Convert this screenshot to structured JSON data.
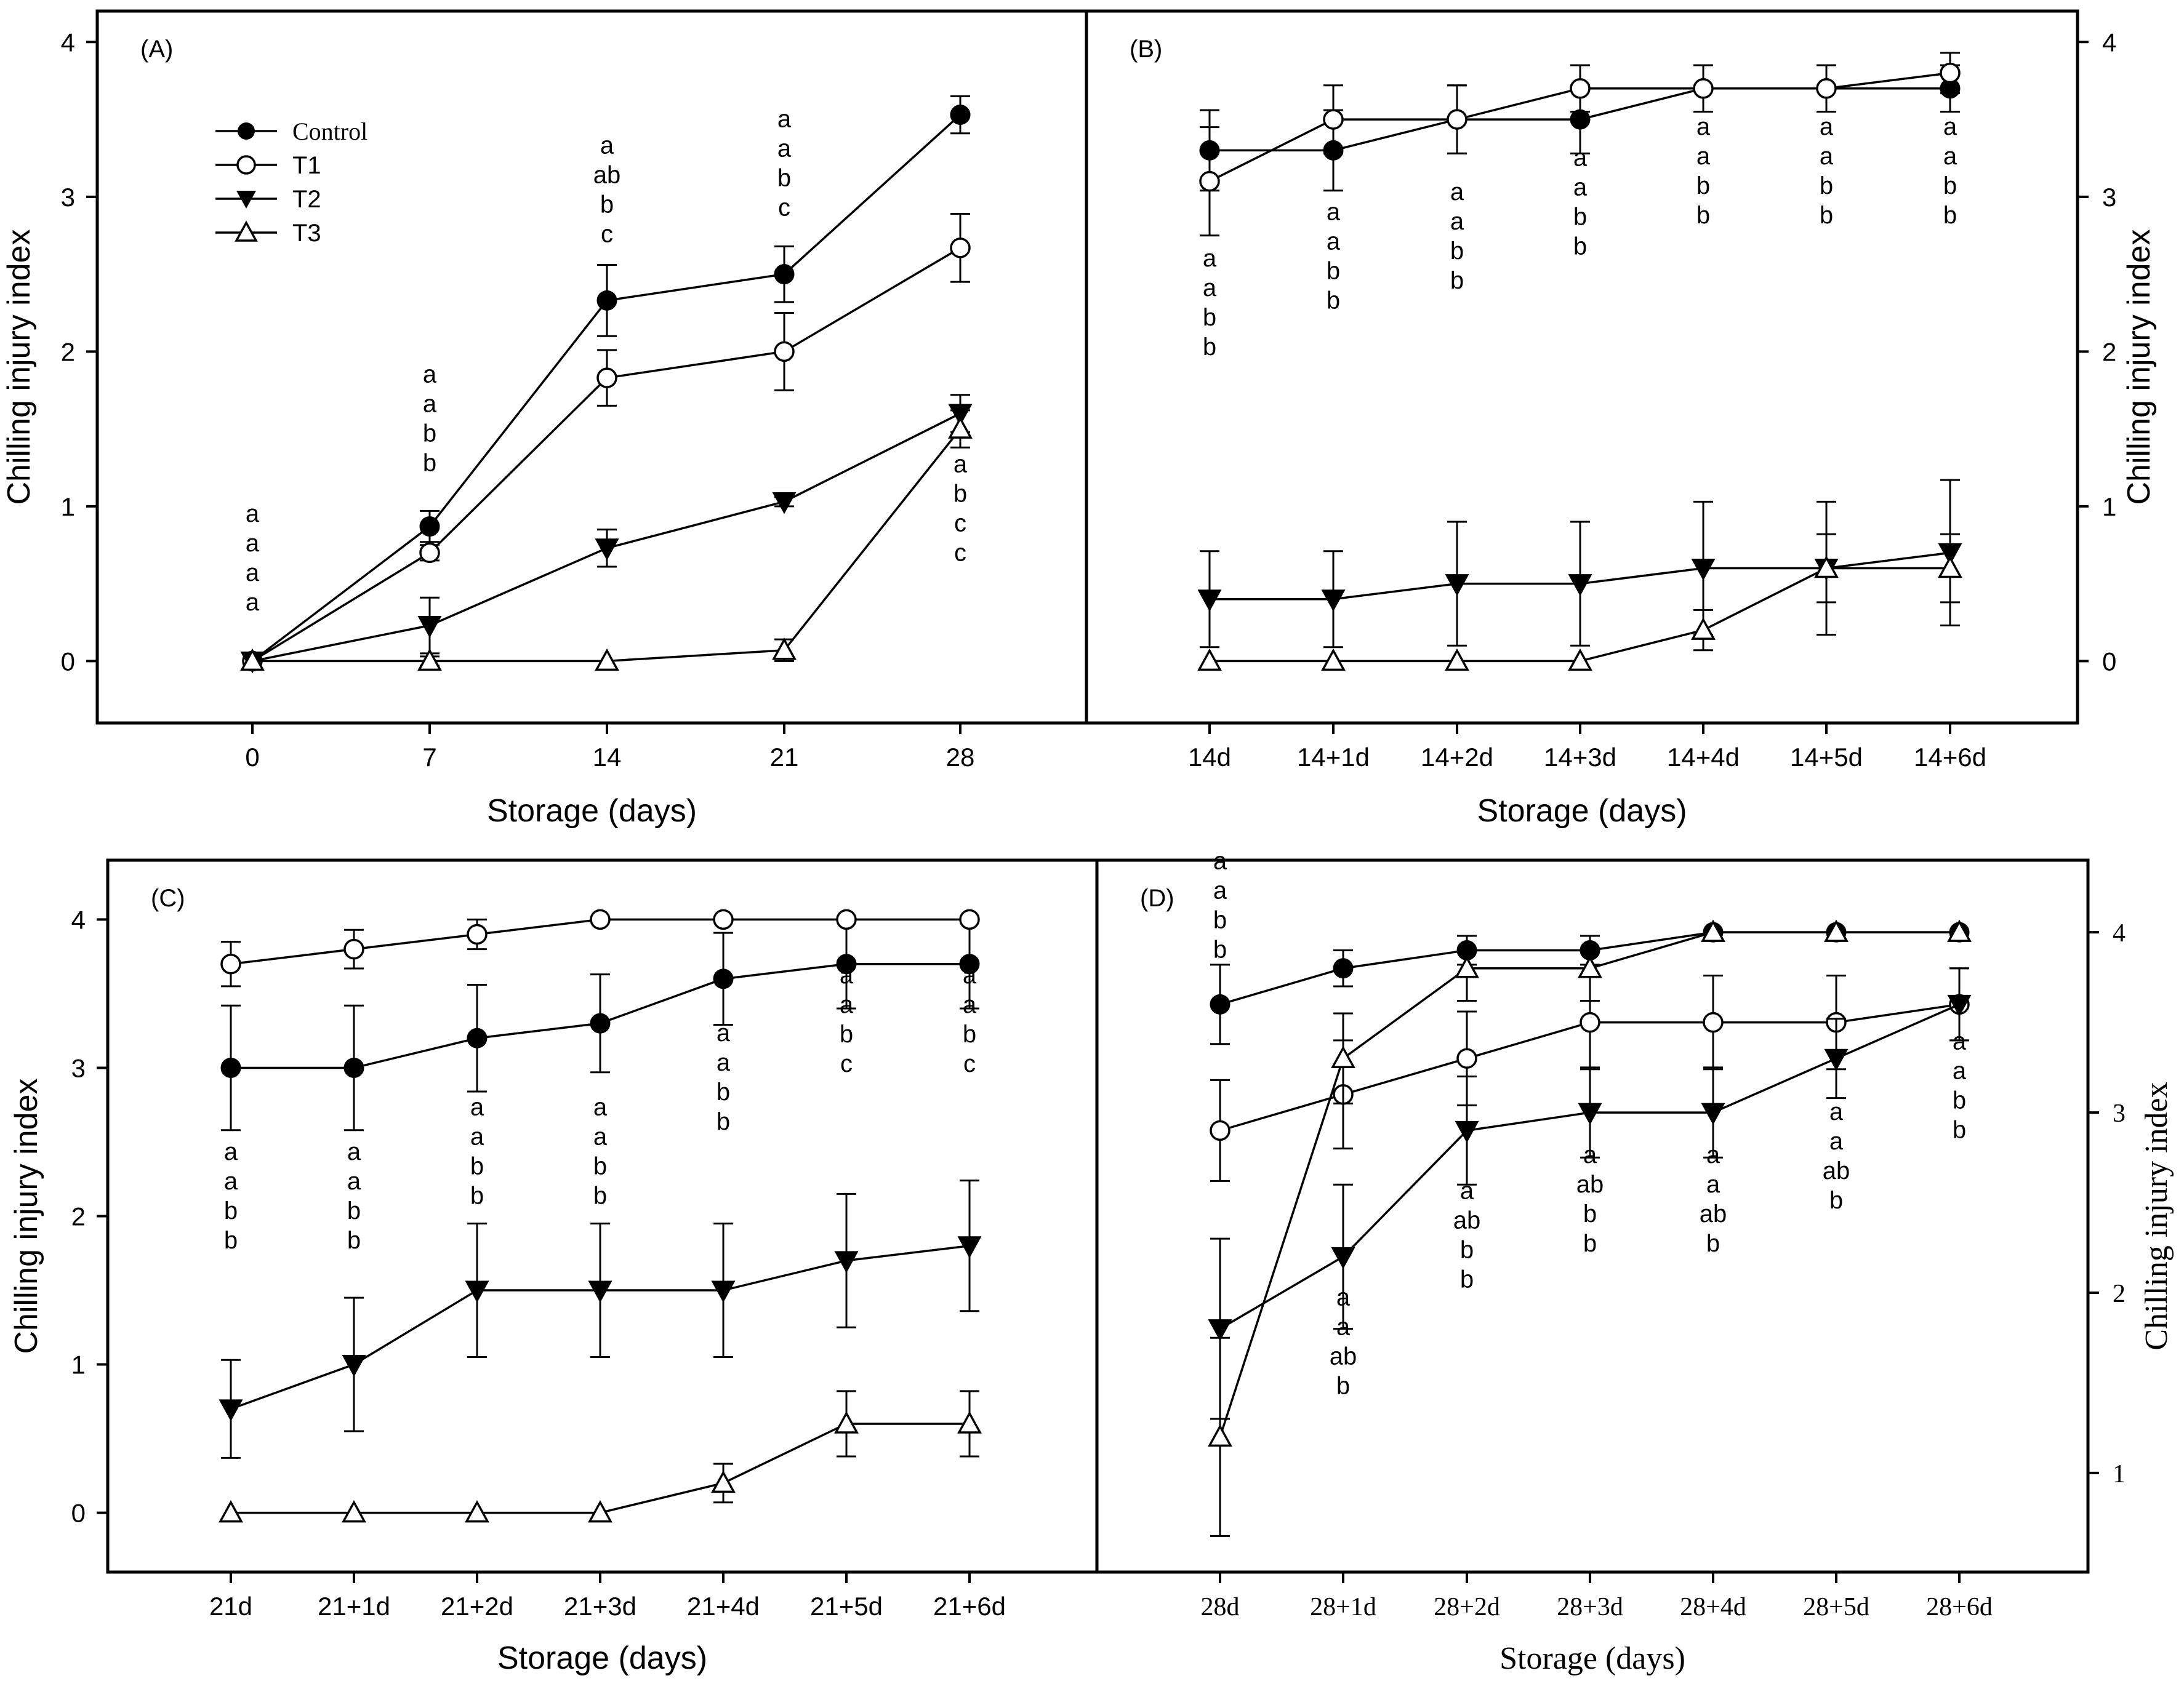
{
  "chart_data": [
    {
      "panel": "(A)",
      "type": "line",
      "title": "",
      "xlabel": "Storage (days)",
      "ylabel": "Chilling injury index",
      "x": [
        "0",
        "7",
        "14",
        "21",
        "28"
      ],
      "yticks": [
        "0",
        "1",
        "2",
        "3",
        "4"
      ],
      "ylim": [
        -0.4,
        4.2
      ],
      "legend": {
        "placement": "top-left",
        "entries": [
          "Control",
          "T1",
          "T2",
          "T3"
        ]
      },
      "series": [
        {
          "name": "Control",
          "marker": "circle-filled",
          "values": [
            0,
            0.87,
            2.33,
            2.5,
            3.53
          ],
          "errors": [
            0,
            0.1,
            0.23,
            0.18,
            0.12
          ]
        },
        {
          "name": "T1",
          "marker": "circle-open",
          "values": [
            0,
            0.7,
            1.83,
            2.0,
            2.67
          ],
          "errors": [
            0,
            0.05,
            0.18,
            0.25,
            0.22
          ]
        },
        {
          "name": "T2",
          "marker": "triangle-down-filled",
          "values": [
            0,
            0.23,
            0.73,
            1.03,
            1.6
          ],
          "errors": [
            0,
            0.18,
            0.12,
            0.03,
            0.12
          ]
        },
        {
          "name": "T3",
          "marker": "triangle-up-open",
          "values": [
            0,
            0,
            0,
            0.07,
            1.5
          ],
          "errors": [
            0,
            0.03,
            0,
            0.07,
            0.12
          ]
        }
      ],
      "letters": [
        {
          "x": 0,
          "y": 0.9,
          "text": [
            "a",
            "a",
            "a",
            "a"
          ]
        },
        {
          "x": 1,
          "y": 1.8,
          "text": [
            "a",
            "a",
            "b",
            "b"
          ]
        },
        {
          "x": 2,
          "y": 3.28,
          "text": [
            "a",
            "ab",
            "b",
            "c"
          ]
        },
        {
          "x": 3,
          "y": 3.45,
          "text": [
            "a",
            "a",
            "b",
            "c"
          ]
        },
        {
          "x": 4,
          "y": 1.22,
          "text": [
            "a",
            "b",
            "c",
            "c"
          ]
        }
      ]
    },
    {
      "panel": "(B)",
      "type": "line",
      "title": "",
      "xlabel": "Storage (days)",
      "ylabel": "Chilling injury index",
      "x": [
        "14d",
        "14+1d",
        "14+2d",
        "14+3d",
        "14+4d",
        "14+5d",
        "14+6d"
      ],
      "yticks": [
        "0",
        "1",
        "2",
        "3",
        "4"
      ],
      "ylim": [
        -0.4,
        4.2
      ],
      "series": [
        {
          "name": "Control",
          "marker": "circle-filled",
          "values": [
            3.3,
            3.3,
            3.5,
            3.5,
            3.7,
            3.7,
            3.7
          ],
          "errors": [
            0.26,
            0.26,
            0.22,
            0.22,
            0.15,
            0.15,
            0.15
          ]
        },
        {
          "name": "T1",
          "marker": "circle-open",
          "values": [
            3.1,
            3.5,
            3.5,
            3.7,
            3.7,
            3.7,
            3.8
          ],
          "errors": [
            0.35,
            0.22,
            0.22,
            0.15,
            0.15,
            0.15,
            0.13
          ]
        },
        {
          "name": "T2",
          "marker": "triangle-down-filled",
          "values": [
            0.4,
            0.4,
            0.5,
            0.5,
            0.6,
            0.6,
            0.7
          ],
          "errors": [
            0.31,
            0.31,
            0.4,
            0.4,
            0.43,
            0.43,
            0.47
          ]
        },
        {
          "name": "T3",
          "marker": "triangle-up-open",
          "values": [
            0,
            0,
            0,
            0,
            0.2,
            0.6,
            0.6
          ],
          "errors": [
            0,
            0,
            0,
            0,
            0.13,
            0.22,
            0.22
          ]
        }
      ],
      "letters": [
        {
          "x": 0,
          "y": 2.55,
          "text": [
            "a",
            "a",
            "b",
            "b"
          ]
        },
        {
          "x": 1,
          "y": 2.85,
          "text": [
            "a",
            "a",
            "b",
            "b"
          ]
        },
        {
          "x": 2,
          "y": 2.98,
          "text": [
            "a",
            "a",
            "b",
            "b"
          ]
        },
        {
          "x": 3,
          "y": 3.2,
          "text": [
            "a",
            "a",
            "b",
            "b"
          ]
        },
        {
          "x": 4,
          "y": 3.4,
          "text": [
            "a",
            "a",
            "b",
            "b"
          ]
        },
        {
          "x": 5,
          "y": 3.4,
          "text": [
            "a",
            "a",
            "b",
            "b"
          ]
        },
        {
          "x": 6,
          "y": 3.4,
          "text": [
            "a",
            "a",
            "b",
            "b"
          ]
        }
      ]
    },
    {
      "panel": "(C)",
      "type": "line",
      "title": "",
      "xlabel": "Storage (days)",
      "ylabel": "Chilling injury index",
      "x": [
        "21d",
        "21+1d",
        "21+2d",
        "21+3d",
        "21+4d",
        "21+5d",
        "21+6d"
      ],
      "yticks": [
        "0",
        "1",
        "2",
        "3",
        "4"
      ],
      "ylim": [
        -0.4,
        4.4
      ],
      "series": [
        {
          "name": "Control",
          "marker": "circle-filled",
          "values": [
            3.0,
            3.0,
            3.2,
            3.3,
            3.6,
            3.7,
            3.7
          ],
          "errors": [
            0.42,
            0.42,
            0.36,
            0.33,
            0.31,
            0.3,
            0.3
          ]
        },
        {
          "name": "T1",
          "marker": "circle-open",
          "values": [
            3.7,
            3.8,
            3.9,
            4.0,
            4.0,
            4.0,
            4.0
          ],
          "errors": [
            0.15,
            0.13,
            0.1,
            0,
            0,
            0,
            0
          ]
        },
        {
          "name": "T2",
          "marker": "triangle-down-filled",
          "values": [
            0.7,
            1.0,
            1.5,
            1.5,
            1.5,
            1.7,
            1.8
          ],
          "errors": [
            0.33,
            0.45,
            0.45,
            0.45,
            0.45,
            0.45,
            0.44
          ]
        },
        {
          "name": "T3",
          "marker": "triangle-up-open",
          "values": [
            0,
            0,
            0,
            0,
            0.2,
            0.6,
            0.6
          ],
          "errors": [
            0,
            0,
            0,
            0,
            0.13,
            0.22,
            0.22
          ]
        }
      ],
      "letters": [
        {
          "x": 0,
          "y": 2.38,
          "text": [
            "a",
            "a",
            "b",
            "b"
          ]
        },
        {
          "x": 1,
          "y": 2.38,
          "text": [
            "a",
            "a",
            "b",
            "b"
          ]
        },
        {
          "x": 2,
          "y": 2.68,
          "text": [
            "a",
            "a",
            "b",
            "b"
          ]
        },
        {
          "x": 3,
          "y": 2.68,
          "text": [
            "a",
            "a",
            "b",
            "b"
          ]
        },
        {
          "x": 4,
          "y": 3.18,
          "text": [
            "a",
            "a",
            "b",
            "b"
          ]
        },
        {
          "x": 5,
          "y": 3.57,
          "text": [
            "a",
            "a",
            "b",
            "c"
          ]
        },
        {
          "x": 6,
          "y": 3.57,
          "text": [
            "a",
            "a",
            "b",
            "c"
          ]
        }
      ]
    },
    {
      "panel": "(D)",
      "type": "line",
      "title": "",
      "xlabel": "Storage (days)",
      "ylabel": "Chilling injury index",
      "x": [
        "28d",
        "28+1d",
        "28+2d",
        "28+3d",
        "28+4d",
        "28+5d",
        "28+6d"
      ],
      "yticks": [
        "1",
        "2",
        "3",
        "4"
      ],
      "ylim": [
        0.45,
        4.4
      ],
      "series": [
        {
          "name": "Control",
          "marker": "circle-filled",
          "values": [
            3.6,
            3.8,
            3.9,
            3.9,
            4.0,
            4.0,
            4.0
          ],
          "errors": [
            0.22,
            0.1,
            0.08,
            0.08,
            0,
            0,
            0
          ]
        },
        {
          "name": "T1",
          "marker": "circle-open",
          "values": [
            2.9,
            3.1,
            3.3,
            3.5,
            3.5,
            3.5,
            3.6
          ],
          "errors": [
            0.28,
            0.3,
            0.26,
            0.26,
            0.26,
            0.26,
            0.2
          ]
        },
        {
          "name": "T2",
          "marker": "triangle-down-filled",
          "values": [
            1.8,
            2.2,
            2.9,
            3.0,
            3.0,
            3.3,
            3.6
          ],
          "errors": [
            0.5,
            0.4,
            0.3,
            0.25,
            0.25,
            0.22,
            0.2
          ]
        },
        {
          "name": "T3",
          "marker": "triangle-up-open",
          "values": [
            1.2,
            3.3,
            3.8,
            3.8,
            4.0,
            4.0,
            4.0
          ],
          "errors": [
            0.55,
            0.25,
            0.18,
            0.18,
            0,
            0,
            0
          ]
        }
      ],
      "letters": [
        {
          "x": 0,
          "y": 4.35,
          "text": [
            "a",
            "a",
            "b",
            "b"
          ]
        },
        {
          "x": 1,
          "y": 1.93,
          "text": [
            "a",
            "a",
            "ab",
            "b"
          ]
        },
        {
          "x": 2,
          "y": 2.52,
          "text": [
            "a",
            "ab",
            "b",
            "b"
          ]
        },
        {
          "x": 3,
          "y": 2.72,
          "text": [
            "a",
            "ab",
            "b",
            "b"
          ]
        },
        {
          "x": 4,
          "y": 2.72,
          "text": [
            "a",
            "a",
            "ab",
            "b"
          ]
        },
        {
          "x": 5,
          "y": 2.96,
          "text": [
            "a",
            "a",
            "ab",
            "b"
          ]
        },
        {
          "x": 6,
          "y": 3.35,
          "text": [
            "a",
            "a",
            "b",
            "b"
          ]
        }
      ]
    }
  ]
}
